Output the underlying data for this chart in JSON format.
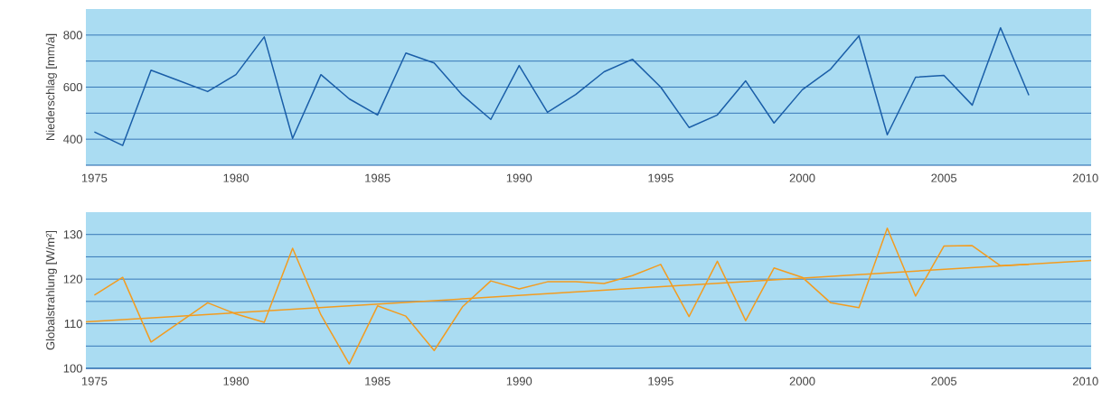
{
  "chart_data": [
    {
      "type": "line",
      "ylabel": "Niederschlag [mm/a]",
      "x": [
        1975,
        1976,
        1977,
        1978,
        1979,
        1980,
        1981,
        1982,
        1983,
        1984,
        1985,
        1986,
        1987,
        1988,
        1989,
        1990,
        1991,
        1992,
        1993,
        1994,
        1995,
        1996,
        1997,
        1998,
        1999,
        2000,
        2001,
        2002,
        2003,
        2004,
        2005,
        2006,
        2007,
        2008
      ],
      "series": [
        {
          "color": "#1a5ea8",
          "values": [
            428,
            376,
            665,
            624,
            583,
            648,
            793,
            403,
            648,
            555,
            493,
            731,
            693,
            569,
            476,
            683,
            503,
            572,
            659,
            707,
            600,
            445,
            493,
            624,
            462,
            590,
            669,
            797,
            417,
            638,
            645,
            531,
            828,
            569
          ]
        }
      ],
      "xlim": [
        1974.7,
        2010.2
      ],
      "xticks": [
        1975,
        1980,
        1985,
        1990,
        1995,
        2000,
        2005,
        2010
      ],
      "ylim": [
        300,
        900
      ],
      "yticks": [
        400,
        {
          "value": 500,
          "label": null
        },
        600,
        {
          "value": 700,
          "label": null
        },
        800
      ],
      "grid": "y"
    },
    {
      "type": "line",
      "ylabel": "Globalstrahlung [W/m²]",
      "x": [
        1975,
        1976,
        1977,
        1978,
        1979,
        1980,
        1981,
        1982,
        1983,
        1984,
        1985,
        1986,
        1987,
        1988,
        1989,
        1990,
        1991,
        1992,
        1993,
        1994,
        1995,
        1996,
        1997,
        1998,
        1999,
        2000,
        2001,
        2002,
        2003,
        2004,
        2005,
        2006,
        2007,
        2008
      ],
      "series": [
        {
          "color": "#f39c1f",
          "values": [
            116.4,
            120.4,
            105.9,
            110.3,
            114.7,
            112.2,
            110.3,
            126.9,
            112.0,
            101.0,
            114.0,
            111.7,
            104.0,
            113.8,
            119.6,
            117.8,
            119.4,
            119.4,
            119.0,
            120.8,
            123.3,
            111.6,
            124.0,
            110.7,
            122.5,
            120.4,
            114.7,
            113.6,
            131.4,
            116.2,
            127.4,
            127.5,
            123.0,
            123.3
          ]
        },
        {
          "color": "#f39c1f",
          "x": [
            1974.7,
            2010.2
          ],
          "values": [
            110.4,
            124.2
          ]
        }
      ],
      "xlim": [
        1974.7,
        2010.2
      ],
      "xticks": [
        1975,
        1980,
        1985,
        1990,
        1995,
        2000,
        2005,
        2010
      ],
      "ylim": [
        100,
        135
      ],
      "yticks": [
        100,
        {
          "value": 105,
          "label": null
        },
        110,
        {
          "value": 115,
          "label": null
        },
        120,
        {
          "value": 125,
          "label": null
        },
        130
      ],
      "grid": "y"
    }
  ]
}
